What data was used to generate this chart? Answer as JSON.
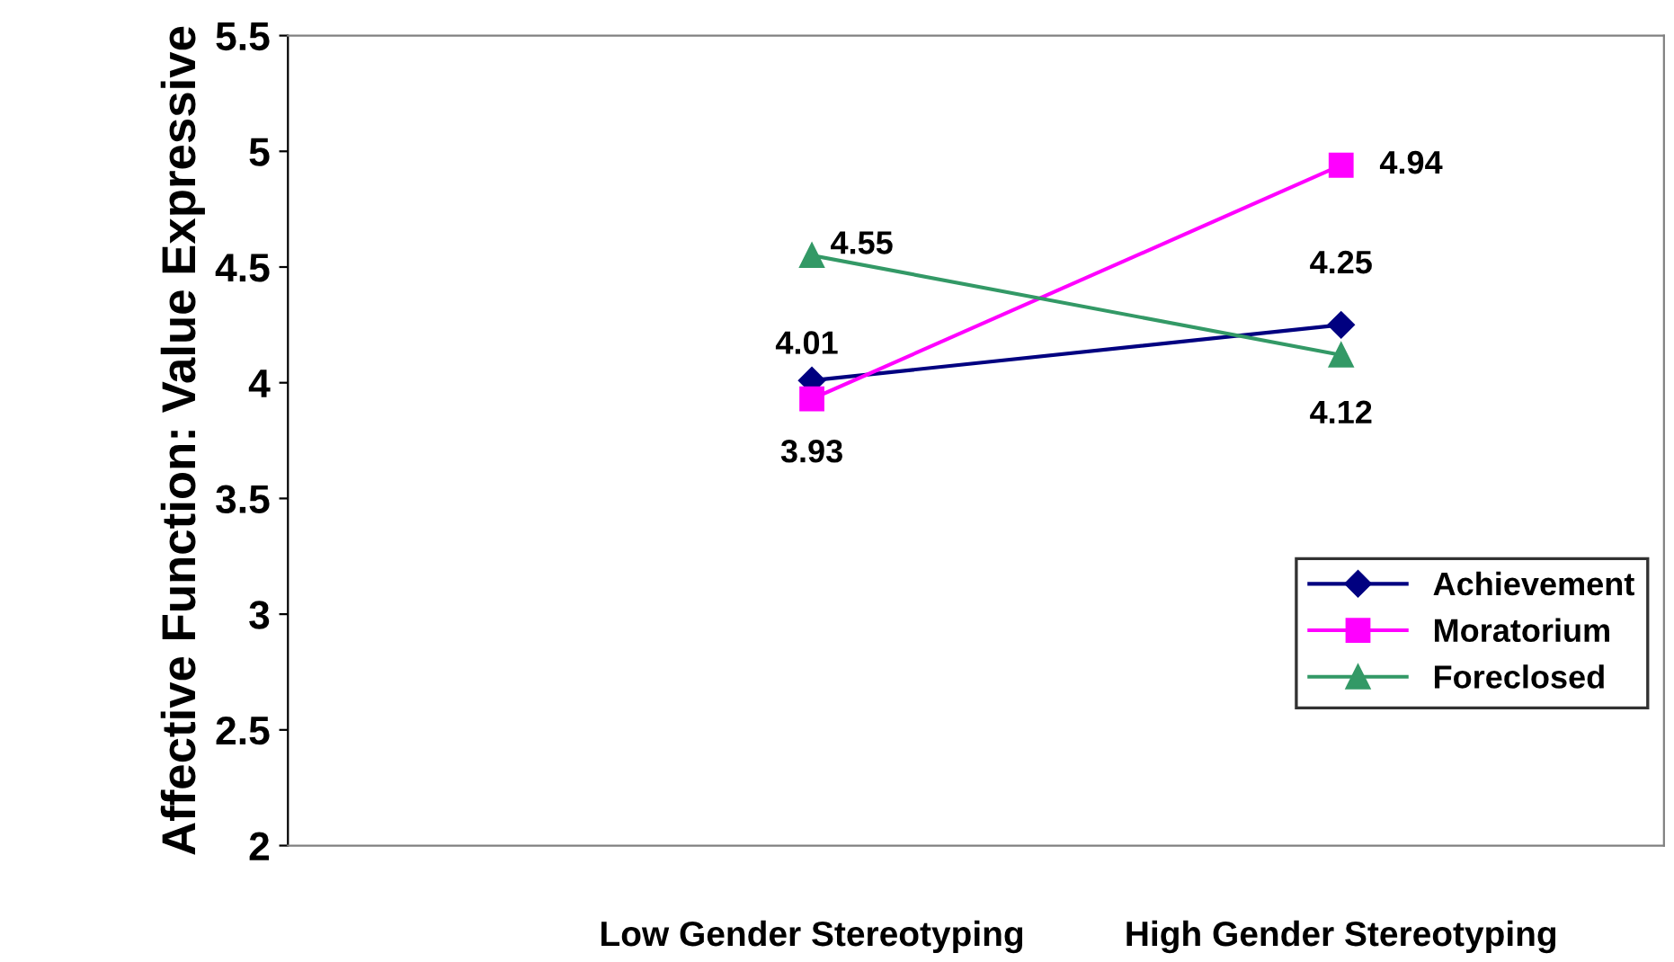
{
  "chart_data": {
    "type": "line",
    "ylabel": "Affective Function: Value Expressive",
    "categories": [
      "Low Gender Stereotyping",
      "High Gender Stereotyping"
    ],
    "series": [
      {
        "name": "Achievement",
        "color": "#000080",
        "marker": "diamond",
        "values": [
          4.01,
          4.25
        ]
      },
      {
        "name": "Moratorium",
        "color": "#ff00ff",
        "marker": "square",
        "values": [
          3.93,
          4.94
        ]
      },
      {
        "name": "Foreclosed",
        "color": "#339966",
        "marker": "triangle",
        "values": [
          4.55,
          4.12
        ]
      }
    ],
    "ylim": [
      2,
      5.5
    ],
    "yticks": [
      2,
      2.5,
      3,
      3.5,
      4,
      4.5,
      5,
      5.5
    ],
    "data_labels": true,
    "grid": false,
    "legend": "bottom right",
    "line_style": "solid"
  }
}
